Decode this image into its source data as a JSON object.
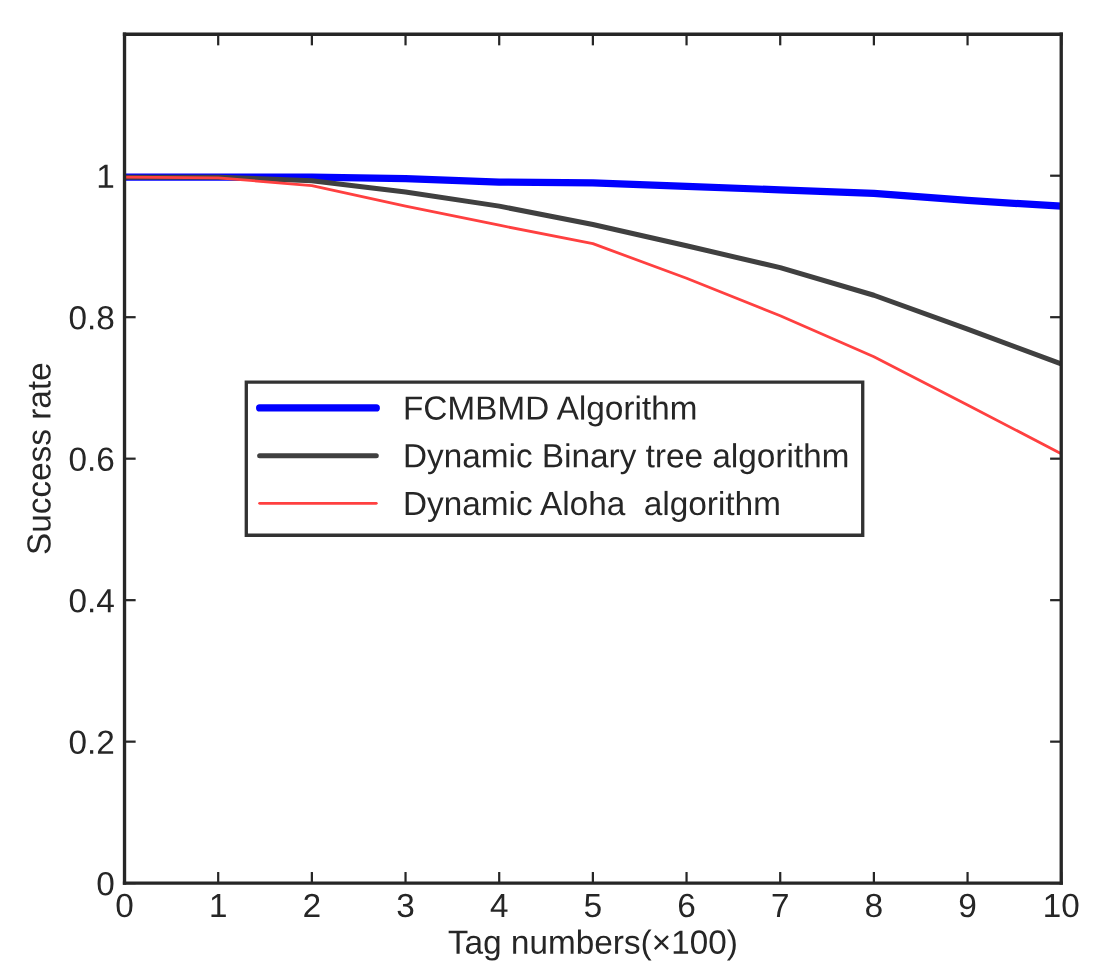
{
  "chart_data": {
    "type": "line",
    "xlabel": "Tag numbers(×100)",
    "ylabel": "Success rate",
    "x": [
      0,
      1,
      2,
      3,
      4,
      5,
      6,
      7,
      8,
      9,
      10
    ],
    "series": [
      {
        "name": "FCMBMD Algorithm",
        "color": "#0000ff",
        "values": [
          0.998,
          0.998,
          0.998,
          0.996,
          0.991,
          0.99,
          0.985,
          0.98,
          0.975,
          0.965,
          0.957
        ]
      },
      {
        "name": "Dynamic Binary tree algorithm",
        "color": "#404040",
        "values": [
          0.998,
          0.998,
          0.993,
          0.977,
          0.957,
          0.931,
          0.901,
          0.87,
          0.831,
          0.783,
          0.734
        ]
      },
      {
        "name": "Dynamic Aloha  algorithm",
        "color": "#ff4040",
        "values": [
          0.998,
          0.997,
          0.986,
          0.957,
          0.93,
          0.904,
          0.855,
          0.802,
          0.744,
          0.676,
          0.607
        ]
      }
    ],
    "xlim": [
      0,
      10
    ],
    "xticks": [
      0,
      1,
      2,
      3,
      4,
      5,
      6,
      7,
      8,
      9,
      10
    ],
    "ylim": [
      0,
      1.2
    ],
    "yticks": [
      0,
      0.2,
      0.4,
      0.6,
      0.8,
      1
    ],
    "grid": false,
    "legend": "center left"
  }
}
